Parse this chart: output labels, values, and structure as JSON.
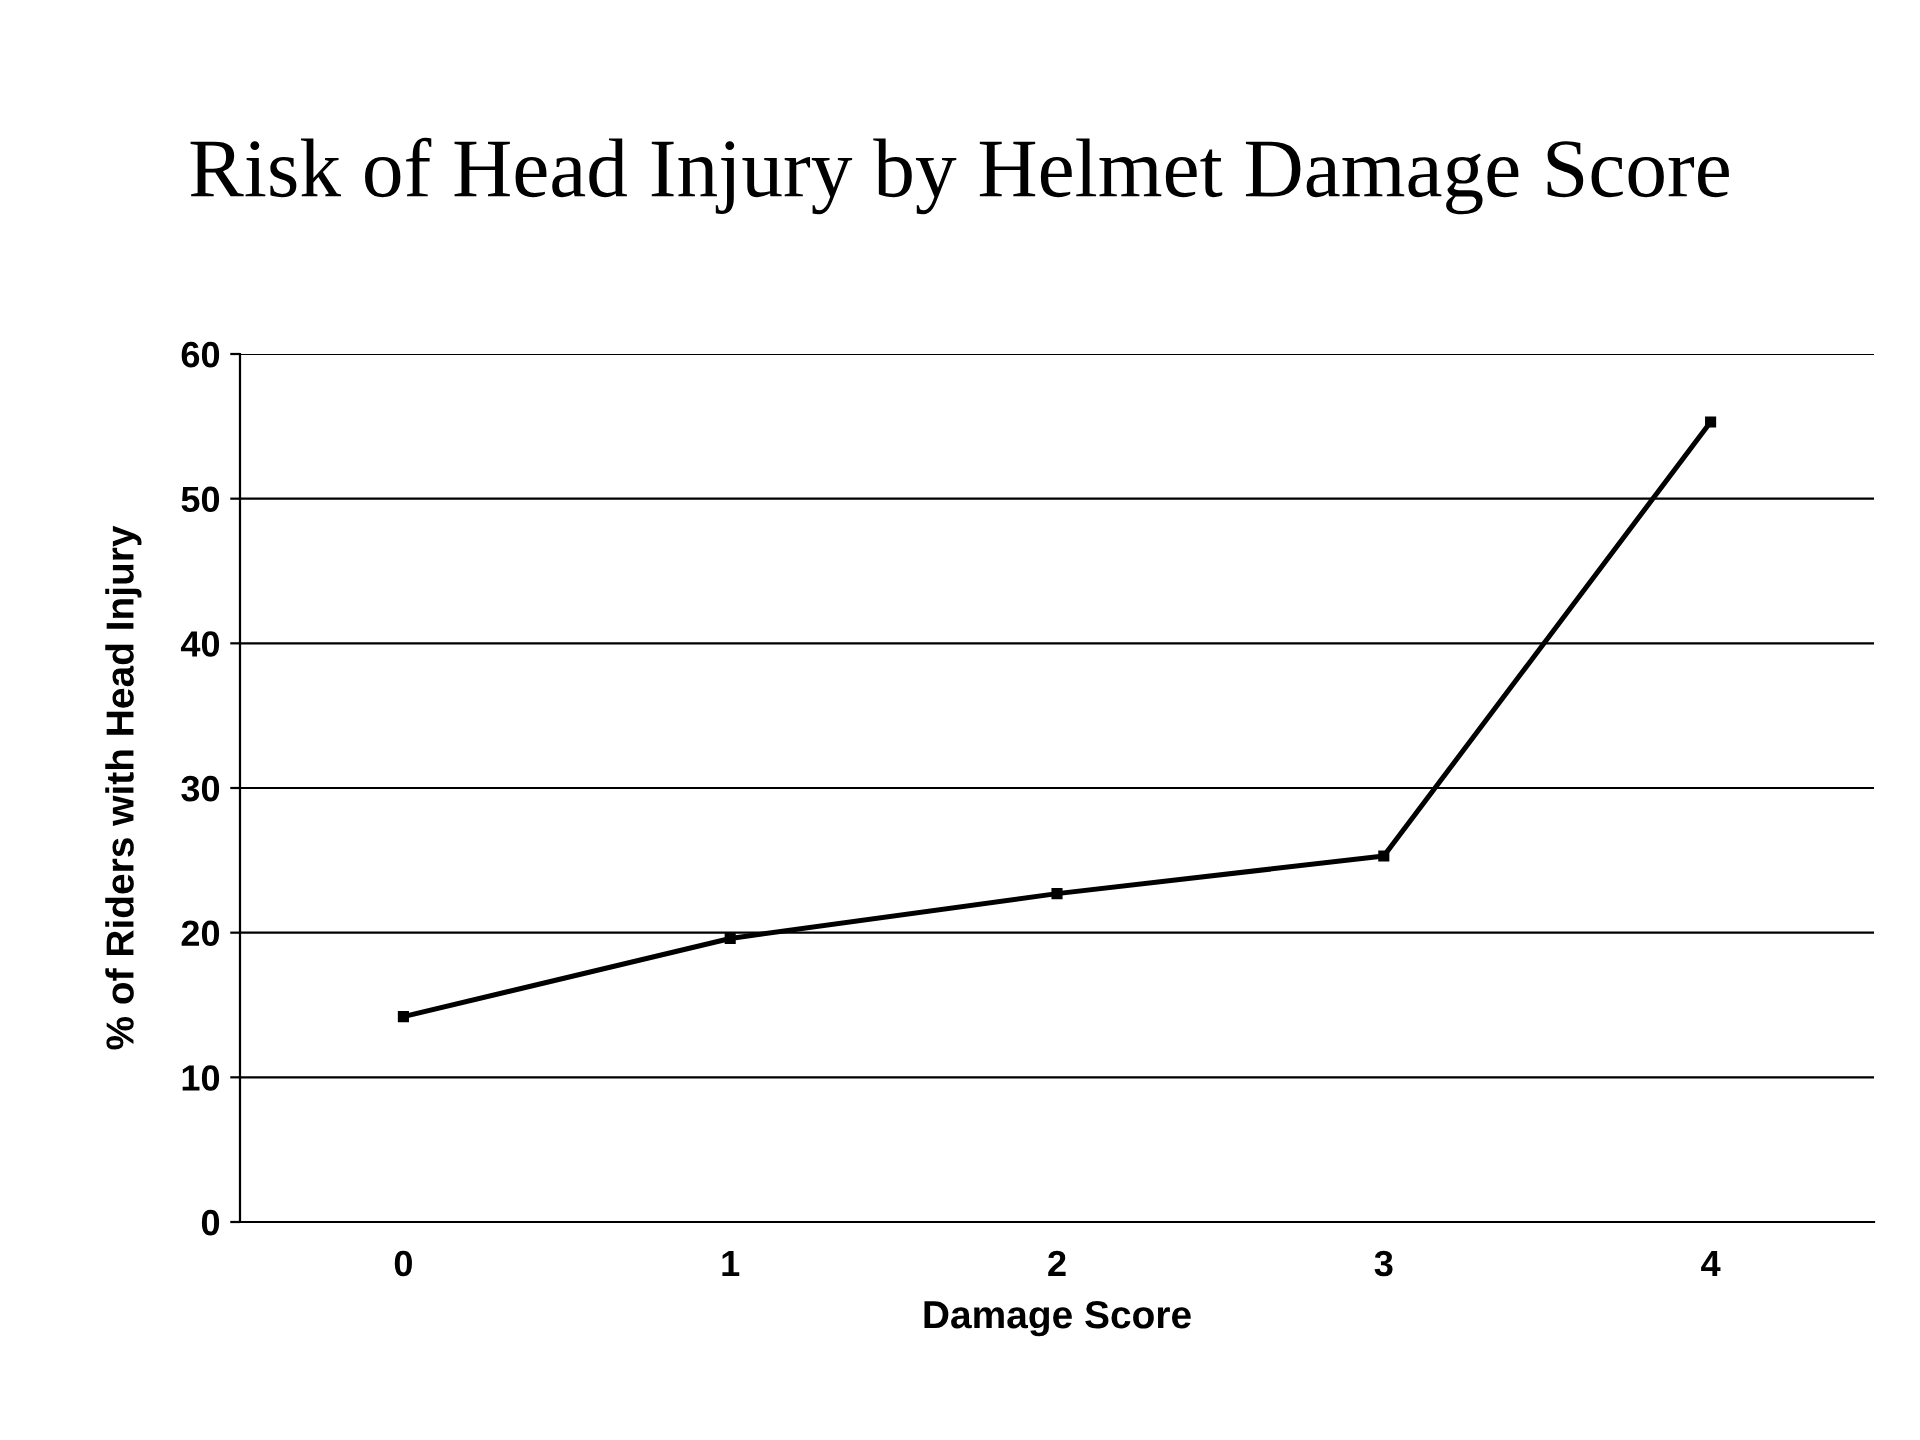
{
  "chart_data": {
    "type": "line",
    "title": "Risk of Head Injury by Helmet Damage Score",
    "xlabel": "Damage Score",
    "ylabel": "% of Riders with Head Injury",
    "categories": [
      "0",
      "1",
      "2",
      "3",
      "4"
    ],
    "series": [
      {
        "color": "#000000",
        "values": [
          14.2,
          19.6,
          22.7,
          25.3,
          55.3
        ]
      }
    ],
    "ylim": [
      0,
      60
    ],
    "yticks": [
      0,
      10,
      20,
      30,
      40,
      50,
      60
    ],
    "grid": "y",
    "marker": "square",
    "line_style": "solid"
  }
}
